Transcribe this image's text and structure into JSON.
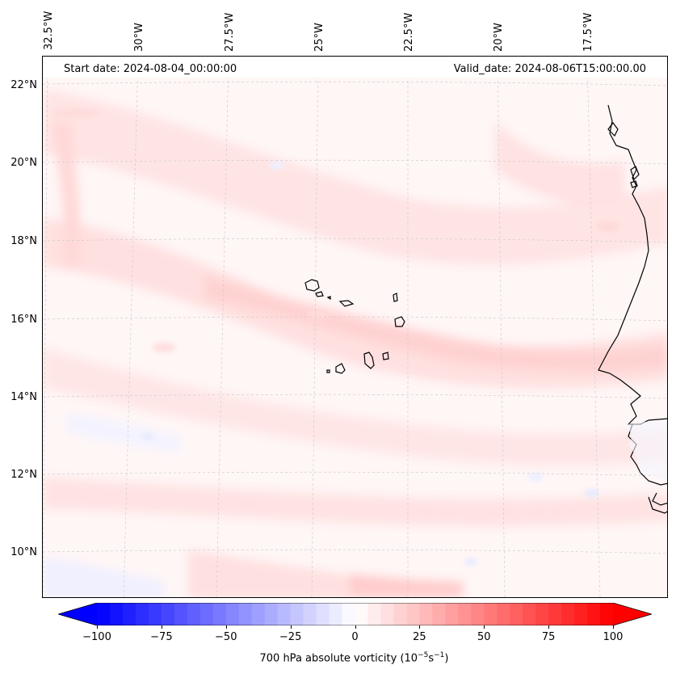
{
  "map": {
    "header_left": "Start date: 2024-08-04_00:00:00",
    "header_right": "Valid_date: 2024-08-06T15:00:00.00",
    "lon_labels": [
      "32.5°W",
      "30°W",
      "27.5°W",
      "25°W",
      "22.5°W",
      "20°W",
      "17.5°W"
    ],
    "lat_labels": [
      "22°N",
      "20°N",
      "18°N",
      "16°N",
      "14°N",
      "12°N",
      "10°N"
    ]
  },
  "colorbar": {
    "tick_labels": [
      "−100",
      "−75",
      "−50",
      "−25",
      "0",
      "25",
      "50",
      "75",
      "100"
    ],
    "title": "700 hPa absolute vorticity (10",
    "title_exp1": "−5",
    "title_mid": "s",
    "title_exp2": "−1",
    "title_end": ")",
    "min": -100,
    "max": 100,
    "low_color": "#0000ff",
    "mid_color": "#ffffff",
    "high_color": "#ff0000"
  }
}
